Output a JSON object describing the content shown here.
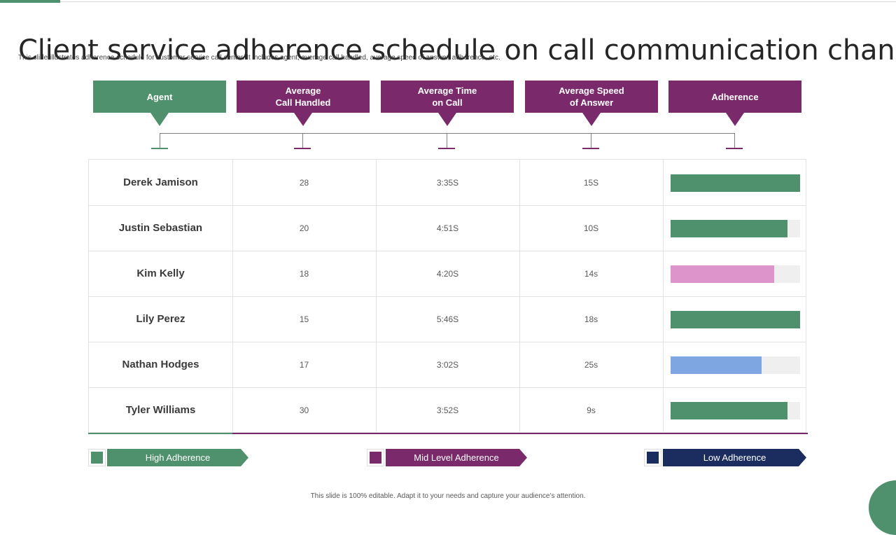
{
  "title": "Client service adherence schedule on call communication channel",
  "subtitle": "This slide illustrates adherence schedule for customer service call center. It includes agent, average call handled,  average speed of answer, adherence, etc.",
  "colors": {
    "green": "#4f916d",
    "purple": "#7a2a6b",
    "navy": "#1b2d5e",
    "pink": "#dd94cb",
    "blue": "#7ea6e0"
  },
  "headers": [
    {
      "label": "Agent",
      "color": "#4f916d"
    },
    {
      "label": "Average\nCall Handled",
      "color": "#7a2a6b"
    },
    {
      "label": "Average Time\non Call",
      "color": "#7a2a6b"
    },
    {
      "label": "Average Speed\nof Answer",
      "color": "#7a2a6b"
    },
    {
      "label": "Adherence",
      "color": "#7a2a6b"
    }
  ],
  "rows": [
    {
      "agent": "Derek Jamison",
      "calls": "28",
      "time": "3:35S",
      "speed": "15S",
      "adherence": 1.0,
      "color": "#4f916d"
    },
    {
      "agent": "Justin Sebastian",
      "calls": "20",
      "time": "4:51S",
      "speed": "10S",
      "adherence": 0.9,
      "color": "#4f916d"
    },
    {
      "agent": "Kim Kelly",
      "calls": "18",
      "time": "4:20S",
      "speed": "14s",
      "adherence": 0.8,
      "color": "#dd94cb"
    },
    {
      "agent": "Lily Perez",
      "calls": "15",
      "time": "5:46S",
      "speed": "18s",
      "adherence": 1.0,
      "color": "#4f916d"
    },
    {
      "agent": "Nathan Hodges",
      "calls": "17",
      "time": "3:02S",
      "speed": "25s",
      "adherence": 0.7,
      "color": "#7ea6e0"
    },
    {
      "agent": "Tyler Williams",
      "calls": "30",
      "time": "3:52S",
      "speed": "9s",
      "adherence": 0.9,
      "color": "#4f916d"
    }
  ],
  "legend": [
    {
      "label": "High Adherence",
      "color": "#4f916d"
    },
    {
      "label": "Mid Level Adherence",
      "color": "#7a2a6b"
    },
    {
      "label": "Low Adherence",
      "color": "#1b2d5e"
    }
  ],
  "footer": "This slide is 100% editable.  Adapt it to your needs and capture your audience’s attention."
}
